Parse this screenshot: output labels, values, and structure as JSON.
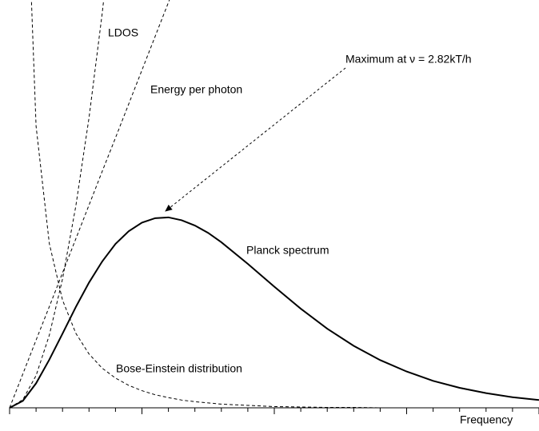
{
  "chart_data": {
    "type": "line",
    "x_label": "Frequency",
    "x": [
      0,
      0.5,
      1,
      1.5,
      2,
      2.5,
      3,
      3.5,
      4,
      4.5,
      5,
      5.5,
      6,
      6.5,
      7,
      7.5,
      8,
      9,
      10,
      11,
      12,
      13,
      14,
      15,
      16,
      17,
      18,
      19,
      20
    ],
    "series": [
      {
        "name": "Planck spectrum",
        "color": "#000000",
        "dashed": false,
        "values": [
          0,
          0.17,
          0.6,
          1.18,
          1.82,
          2.47,
          3.07,
          3.59,
          4.02,
          4.33,
          4.54,
          4.65,
          4.67,
          4.6,
          4.47,
          4.29,
          4.06,
          3.53,
          2.97,
          2.43,
          1.94,
          1.52,
          1.17,
          0.89,
          0.66,
          0.49,
          0.36,
          0.26,
          0.19
        ]
      },
      {
        "name": "Bose-Einstein distribution",
        "color": "#000000",
        "dashed": true,
        "values": [
          null,
          15.71,
          6.91,
          4.03,
          2.64,
          1.83,
          1.32,
          0.97,
          0.73,
          0.55,
          0.42,
          0.32,
          0.25,
          0.19,
          0.15,
          0.12,
          0.09,
          0.06,
          0.03,
          0.02,
          0.01,
          0.01,
          0,
          0,
          0,
          0,
          0,
          0,
          0
        ]
      },
      {
        "name": "LDOS",
        "color": "#000000",
        "dashed": true,
        "values": [
          0,
          0.2,
          0.79,
          1.78,
          3.16,
          4.94,
          7.11,
          9.68,
          12.64,
          null,
          null,
          null,
          null,
          null,
          null,
          null,
          null,
          null,
          null,
          null,
          null,
          null,
          null,
          null,
          null,
          null,
          null,
          null,
          null
        ]
      },
      {
        "name": "Energy per photon",
        "color": "#000000",
        "dashed": true,
        "values": [
          0,
          0.83,
          1.66,
          2.48,
          3.31,
          4.14,
          4.97,
          5.8,
          6.62,
          7.45,
          8.28,
          9.11,
          9.94,
          10.76,
          null,
          null,
          null,
          null,
          null,
          null,
          null,
          null,
          null,
          null,
          null,
          null,
          null,
          null,
          null
        ]
      }
    ],
    "annotations": [
      {
        "text": "Maximum at ν = 2.82kT/h"
      }
    ],
    "xlim": [
      0,
      20
    ],
    "xticks": [
      0,
      1,
      2,
      3,
      4,
      5,
      6,
      7,
      8,
      9,
      10,
      11,
      12,
      13,
      14,
      15,
      16,
      17,
      18,
      19,
      20
    ],
    "ylim": [
      0,
      10
    ]
  }
}
